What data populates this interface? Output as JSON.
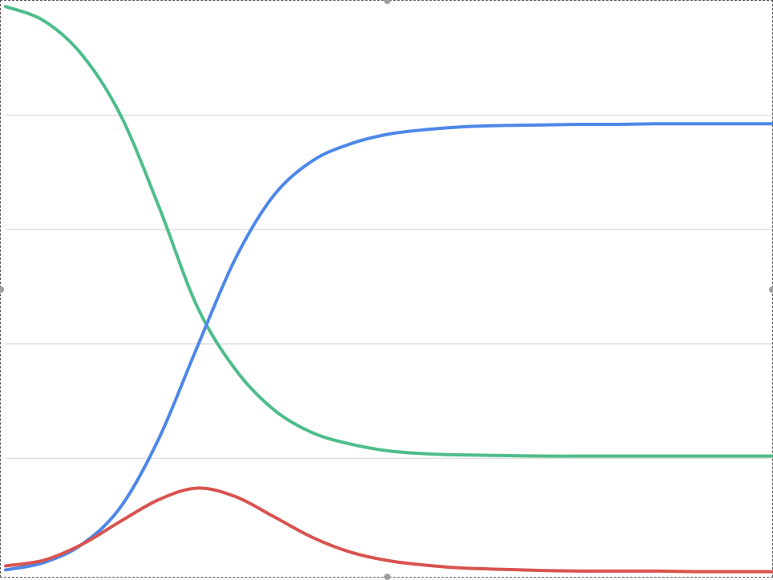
{
  "chart_data": {
    "type": "line",
    "title": "",
    "xlabel": "",
    "ylabel": "",
    "xlim": [
      0,
      100
    ],
    "ylim": [
      0,
      1
    ],
    "grid": true,
    "y_gridlines": [
      0.2,
      0.4,
      0.6,
      0.8
    ],
    "legend": "none",
    "x": [
      0,
      5,
      10,
      15,
      20,
      25,
      30,
      35,
      40,
      45,
      50,
      55,
      60,
      65,
      70,
      75,
      80,
      85,
      90,
      95,
      100
    ],
    "series": [
      {
        "color": "#4dbd8a",
        "values": [
          0.99,
          0.965,
          0.905,
          0.8,
          0.64,
          0.465,
          0.355,
          0.285,
          0.245,
          0.225,
          0.213,
          0.208,
          0.206,
          0.205,
          0.204,
          0.204,
          0.204,
          0.204,
          0.204,
          0.204,
          0.204
        ]
      },
      {
        "color": "#4d87e9",
        "values": [
          0.005,
          0.018,
          0.05,
          0.115,
          0.235,
          0.395,
          0.55,
          0.66,
          0.72,
          0.75,
          0.767,
          0.775,
          0.78,
          0.782,
          0.783,
          0.784,
          0.784,
          0.785,
          0.785,
          0.785,
          0.785
        ]
      },
      {
        "color": "#d9534f",
        "values": [
          0.012,
          0.022,
          0.05,
          0.09,
          0.128,
          0.148,
          0.133,
          0.098,
          0.062,
          0.036,
          0.021,
          0.013,
          0.008,
          0.006,
          0.004,
          0.003,
          0.003,
          0.003,
          0.002,
          0.002,
          0.002
        ]
      }
    ]
  },
  "colors": {
    "grid": "#e0e0e0",
    "frame": "#555555",
    "handle": "#9e9e9e"
  }
}
